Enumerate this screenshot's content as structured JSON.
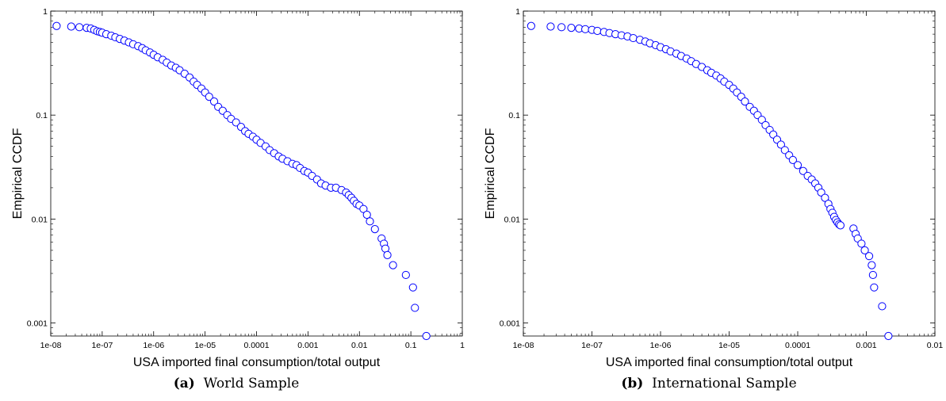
{
  "chart_data": [
    {
      "type": "scatter",
      "title": "",
      "xlabel": "USA imported final consumption/total output",
      "ylabel": "Empirical CCDF",
      "xscale": "log",
      "yscale": "log",
      "xlim": [
        1e-08,
        1
      ],
      "ylim": [
        0.00075,
        1
      ],
      "xticks": [
        1e-08,
        1e-07,
        1e-06,
        1e-05,
        0.0001,
        0.001,
        0.01,
        0.1,
        1
      ],
      "xtick_labels": [
        "1e-08",
        "1e-07",
        "1e-06",
        "1e-05",
        "0.0001",
        "0.001",
        "0.01",
        "0.1",
        "1"
      ],
      "yticks": [
        0.001,
        0.01,
        0.1,
        1
      ],
      "ytick_labels": [
        "0.001",
        "0.01",
        "0.1",
        "1"
      ],
      "grid": false,
      "marker_color": "#0000ff",
      "caption_tag": "(a)",
      "caption_text": "World Sample",
      "x": [
        1.3e-08,
        2.5e-08,
        3.6e-08,
        5e-08,
        6e-08,
        7e-08,
        8e-08,
        9e-08,
        1e-07,
        1.2e-07,
        1.5e-07,
        1.8e-07,
        2.2e-07,
        2.7e-07,
        3.3e-07,
        4e-07,
        5e-07,
        6e-07,
        7e-07,
        8.5e-07,
        1e-06,
        1.2e-06,
        1.5e-06,
        1.8e-06,
        2.2e-06,
        2.7e-06,
        3.2e-06,
        4e-06,
        5e-06,
        6e-06,
        7e-06,
        8.5e-06,
        1e-05,
        1.2e-05,
        1.5e-05,
        1.8e-05,
        2.2e-05,
        2.7e-05,
        3.2e-05,
        4e-05,
        5e-05,
        6e-05,
        7e-05,
        8.5e-05,
        0.0001,
        0.00012,
        0.00015,
        0.00018,
        0.00022,
        0.00027,
        0.00032,
        0.0004,
        0.0005,
        0.0006,
        0.0007,
        0.00085,
        0.001,
        0.0012,
        0.0015,
        0.0018,
        0.0022,
        0.0028,
        0.0035,
        0.0045,
        0.0055,
        0.0062,
        0.007,
        0.0078,
        0.0088,
        0.01,
        0.012,
        0.014,
        0.016,
        0.02,
        0.027,
        0.03,
        0.032,
        0.035,
        0.045,
        0.08,
        0.11,
        0.12,
        0.2
      ],
      "y": [
        0.72,
        0.71,
        0.7,
        0.69,
        0.68,
        0.66,
        0.64,
        0.63,
        0.62,
        0.6,
        0.58,
        0.56,
        0.54,
        0.52,
        0.5,
        0.48,
        0.46,
        0.44,
        0.42,
        0.4,
        0.38,
        0.36,
        0.34,
        0.32,
        0.3,
        0.285,
        0.27,
        0.25,
        0.23,
        0.21,
        0.195,
        0.18,
        0.165,
        0.15,
        0.135,
        0.12,
        0.11,
        0.1,
        0.092,
        0.085,
        0.077,
        0.07,
        0.066,
        0.062,
        0.058,
        0.054,
        0.05,
        0.046,
        0.043,
        0.04,
        0.038,
        0.036,
        0.034,
        0.033,
        0.031,
        0.029,
        0.028,
        0.026,
        0.024,
        0.022,
        0.021,
        0.02,
        0.02,
        0.019,
        0.018,
        0.017,
        0.016,
        0.015,
        0.014,
        0.0135,
        0.0125,
        0.011,
        0.0095,
        0.008,
        0.0065,
        0.0058,
        0.0052,
        0.0045,
        0.0036,
        0.0029,
        0.0022,
        0.0014,
        0.00075
      ]
    },
    {
      "type": "scatter",
      "title": "",
      "xlabel": "USA imported final consumption/total output",
      "ylabel": "Empirical CCDF",
      "xscale": "log",
      "yscale": "log",
      "xlim": [
        1e-08,
        0.01
      ],
      "ylim": [
        0.00075,
        1
      ],
      "xticks": [
        1e-08,
        1e-07,
        1e-06,
        1e-05,
        0.0001,
        0.001,
        0.01
      ],
      "xtick_labels": [
        "1e-08",
        "1e-07",
        "1e-06",
        "1e-05",
        "0.0001",
        "0.001",
        "0.01"
      ],
      "yticks": [
        0.001,
        0.01,
        0.1,
        1
      ],
      "ytick_labels": [
        "0.001",
        "0.01",
        "0.1",
        "1"
      ],
      "grid": false,
      "marker_color": "#0000ff",
      "caption_tag": "(b)",
      "caption_text": "International Sample",
      "x": [
        1.3e-08,
        2.5e-08,
        3.6e-08,
        5e-08,
        6.5e-08,
        8e-08,
        1e-07,
        1.2e-07,
        1.5e-07,
        1.8e-07,
        2.2e-07,
        2.7e-07,
        3.3e-07,
        4e-07,
        5e-07,
        6e-07,
        7e-07,
        8.5e-07,
        1e-06,
        1.2e-06,
        1.4e-06,
        1.7e-06,
        2e-06,
        2.4e-06,
        2.8e-06,
        3.3e-06,
        4e-06,
        4.8e-06,
        5.5e-06,
        6.5e-06,
        7.5e-06,
        8.5e-06,
        1e-05,
        1.15e-05,
        1.3e-05,
        1.5e-05,
        1.7e-05,
        2e-05,
        2.3e-05,
        2.6e-05,
        3e-05,
        3.4e-05,
        3.9e-05,
        4.4e-05,
        5e-05,
        5.7e-05,
        6.5e-05,
        7.5e-05,
        8.5e-05,
        0.0001,
        0.00012,
        0.00014,
        0.00016,
        0.00018,
        0.0002,
        0.00022,
        0.00025,
        0.00028,
        0.0003,
        0.00032,
        0.00034,
        0.00036,
        0.00038,
        0.0004,
        0.00042,
        0.00065,
        0.0007,
        0.00075,
        0.00085,
        0.00095,
        0.0011,
        0.0012,
        0.00125,
        0.0013,
        0.0017,
        0.0021
      ],
      "y": [
        0.72,
        0.71,
        0.7,
        0.69,
        0.68,
        0.67,
        0.66,
        0.645,
        0.63,
        0.615,
        0.6,
        0.585,
        0.57,
        0.55,
        0.53,
        0.51,
        0.49,
        0.47,
        0.45,
        0.43,
        0.41,
        0.39,
        0.37,
        0.35,
        0.33,
        0.31,
        0.29,
        0.27,
        0.255,
        0.24,
        0.225,
        0.21,
        0.195,
        0.18,
        0.165,
        0.15,
        0.135,
        0.12,
        0.11,
        0.1,
        0.09,
        0.08,
        0.072,
        0.065,
        0.058,
        0.052,
        0.046,
        0.041,
        0.037,
        0.033,
        0.029,
        0.026,
        0.024,
        0.022,
        0.02,
        0.018,
        0.016,
        0.014,
        0.0125,
        0.0115,
        0.0105,
        0.0098,
        0.0093,
        0.0089,
        0.0087,
        0.0081,
        0.0072,
        0.0065,
        0.0058,
        0.005,
        0.0044,
        0.0036,
        0.0029,
        0.0022,
        0.00145,
        0.00075
      ]
    }
  ]
}
